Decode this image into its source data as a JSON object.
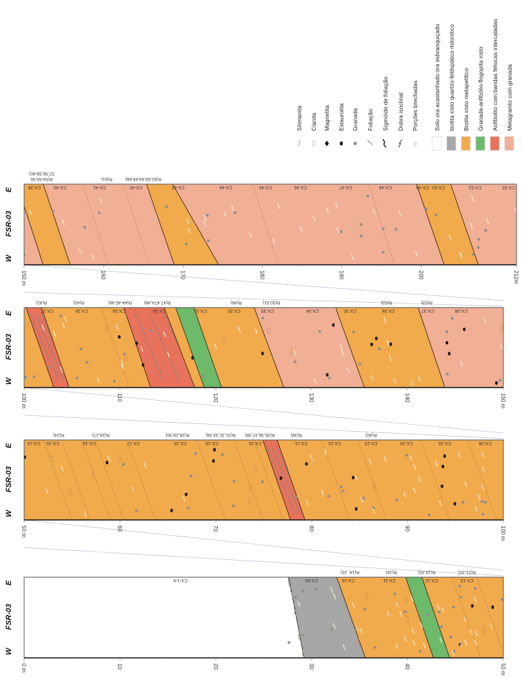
{
  "log": {
    "well": "FSR-03",
    "west": "W",
    "east": "E",
    "unit": "m"
  },
  "colors": {
    "solo": "#ffffff",
    "biotita_quartzo": "#a7a7a7",
    "biotita_metapelitico": "#f1aa4c",
    "granada_anfibolio": "#6cba6a",
    "anfibolito": "#e8725b",
    "metagranito": "#f1af96"
  },
  "legend": {
    "symbols": [
      {
        "label": "Silimanita",
        "icon": "sillimanite-icon"
      },
      {
        "label": "Cianita",
        "icon": "kyanite-icon"
      },
      {
        "label": "Magnetita",
        "icon": "magnetite-icon"
      },
      {
        "label": "Estaurolita",
        "icon": "staurolite-icon"
      },
      {
        "label": "Granada",
        "icon": "garnet-icon"
      },
      {
        "label": "Foliação",
        "icon": "foliation-icon"
      },
      {
        "label": "Sigmóide de foliação",
        "icon": "sigmoid-icon"
      },
      {
        "label": "Dobra isoclinal",
        "icon": "isoclinal-fold-icon"
      },
      {
        "label": "Porções brechadas",
        "icon": "breccia-icon"
      }
    ],
    "lithologies": [
      {
        "key": "solo",
        "label": "Solo ora acastanhado ora esbranquiçado"
      },
      {
        "key": "biotita_quartzo",
        "label": "biotita xisto quartzo-feldspático milonítico"
      },
      {
        "key": "biotita_metapelitico",
        "label": "Biotita xisto metapelítico"
      },
      {
        "key": "granada_anfibolio",
        "label": "Granada-anfibólio-flogopita xisto"
      },
      {
        "key": "anfibolito",
        "label": "Anfibolito com bandas félsicas intercaladas"
      },
      {
        "key": "metagranito",
        "label": "Metagranito com granada"
      }
    ]
  },
  "strips": [
    {
      "range": [
        150,
        212
      ],
      "ticks": [
        "150 m",
        "160",
        "170",
        "180",
        "190",
        "200",
        "212m"
      ],
      "tick_values": [
        150,
        160,
        170,
        180,
        190,
        200,
        212
      ],
      "bands": [
        {
          "lith": "metagranito",
          "e": 140,
          "w": 140
        },
        {
          "lith": "biotita_metapelitico",
          "e": 149.1,
          "w": 152.4
        },
        {
          "lith": "metagranito",
          "e": 152.4,
          "w": 155.8
        },
        {
          "lith": "biotita_metapelitico",
          "e": 165.4,
          "w": 168.9
        },
        {
          "lith": "metagranito",
          "e": 168.7,
          "w": 174.5
        },
        {
          "lith": "biotita_metapelitico",
          "e": 199.4,
          "w": 202.9
        },
        {
          "lith": "metagranito",
          "e": 203.7,
          "w": 207.2
        }
      ],
      "dotted": [
        [
          157.4,
          160.6
        ],
        [
          162.5,
          165.7
        ],
        [
          178.8,
          182
        ],
        [
          193.4,
          196.6
        ]
      ],
      "samples": [
        {
          "id": "CX-39",
          "d": 151.3
        },
        {
          "id": "CX-40",
          "d": 154.5
        },
        {
          "id": "CX-41",
          "d": 159.5
        },
        {
          "id": "CX-42",
          "d": 164.1
        },
        {
          "id": "CX-43",
          "d": 169.4
        },
        {
          "id": "CX-44",
          "d": 175.4
        },
        {
          "id": "CX-45",
          "d": 180.4
        },
        {
          "id": "CX-46",
          "d": 184.8
        },
        {
          "id": "CX-47",
          "d": 190.5
        },
        {
          "id": "CX-48",
          "d": 195.5
        },
        {
          "id": "CX-49",
          "d": 200.2
        },
        {
          "id": "CX-50",
          "d": 202.2
        },
        {
          "id": "CX-51",
          "d": 206.8
        },
        {
          "id": "CX-52",
          "d": 211
        }
      ],
      "refs": [
        {
          "id": "R(54,55,56",
          "d": 152.2,
          "row": 0
        },
        {
          "id": "57,58,59,60)",
          "d": 152.2,
          "row": 1
        },
        {
          "id": "R(61)",
          "d": 160.4,
          "row": 0
        },
        {
          "id": "R(62,63,64,65,66)",
          "d": 165,
          "row": 0
        }
      ]
    },
    {
      "range": [
        100,
        150
      ],
      "ticks": [
        "100 m",
        "110",
        "120",
        "130",
        "140",
        "150 m"
      ],
      "tick_values": [
        100,
        110,
        120,
        130,
        140,
        150
      ],
      "bands": [
        {
          "lith": "biotita_metapelitico",
          "e": 90,
          "w": 90
        },
        {
          "lith": "anfibolito",
          "e": 100.2,
          "w": 103.1
        },
        {
          "lith": "biotita_metapelitico",
          "e": 101.8,
          "w": 104.7
        },
        {
          "lith": "anfibolito",
          "e": 110.4,
          "w": 113.2
        },
        {
          "lith": "biotita_metapelitico",
          "e": 114.6,
          "w": 117.8
        },
        {
          "lith": "granada_anfibolio",
          "e": 115.8,
          "w": 118.8
        },
        {
          "lith": "biotita_metapelitico",
          "e": 117.7,
          "w": 120.6
        },
        {
          "lith": "metagranito",
          "e": 124,
          "w": 127.1
        },
        {
          "lith": "biotita_metapelitico",
          "e": 132.5,
          "w": 135.5
        },
        {
          "lith": "metagranito",
          "e": 141.1,
          "w": 143.9
        }
      ],
      "dotted": [
        [
          108,
          111
        ]
      ],
      "samples": [
        {
          "id": "CX-27",
          "d": 102.4
        },
        {
          "id": "CX-28",
          "d": 106
        },
        {
          "id": "CX-29",
          "d": 109.9
        },
        {
          "id": "CX-30",
          "d": 114.1
        },
        {
          "id": "CX-31",
          "d": 118.4
        },
        {
          "id": "CX-32",
          "d": 121.9
        },
        {
          "id": "CX-33",
          "d": 125.4
        },
        {
          "id": "CX-34",
          "d": 130.1
        },
        {
          "id": "CX-35",
          "d": 134
        },
        {
          "id": "CX-36",
          "d": 138
        },
        {
          "id": "CX-37",
          "d": 142.1
        },
        {
          "id": "CX-38",
          "d": 145.6
        }
      ],
      "refs": [
        {
          "id": "R(42)",
          "d": 101.8,
          "row": 0
        },
        {
          "id": "R(43)",
          "d": 105.7,
          "row": 0
        },
        {
          "id": "R(44,45,46)",
          "d": 110,
          "row": 0
        },
        {
          "id": "R(47,47A,48)",
          "d": 113.9,
          "row": 0
        },
        {
          "id": "R(49)",
          "d": 122.1,
          "row": 0
        },
        {
          "id": "R(50,51)",
          "d": 125.8,
          "row": 0
        },
        {
          "id": "R(52)",
          "d": 137.8,
          "row": 0
        },
        {
          "id": "R(53)",
          "d": 142,
          "row": 0
        }
      ]
    },
    {
      "range": [
        50,
        100
      ],
      "ticks": [
        "50 m",
        "60",
        "70",
        "80",
        "90",
        "100 m"
      ],
      "tick_values": [
        50,
        60,
        70,
        80,
        90,
        100
      ],
      "bands": [
        {
          "lith": "biotita_metapelitico",
          "e": 40,
          "w": 40
        },
        {
          "lith": "anfibolito",
          "e": 74.9,
          "w": 77.8
        },
        {
          "lith": "biotita_metapelitico",
          "e": 76.4,
          "w": 79.3
        }
      ],
      "dotted": [
        [
          52,
          55
        ],
        [
          53.9,
          56.9
        ],
        [
          56,
          59
        ],
        [
          57.4,
          60.4
        ],
        [
          60.7,
          63.7
        ],
        [
          68,
          71
        ],
        [
          71.9,
          74.9
        ],
        [
          74,
          77
        ],
        [
          81,
          84
        ],
        [
          84.8,
          87.8
        ],
        [
          91.4,
          94.4
        ],
        [
          96.3,
          99.3
        ]
      ],
      "samples": [
        {
          "id": "CX-14",
          "d": 51
        },
        {
          "id": "CX-15",
          "d": 53
        },
        {
          "id": "CX-16",
          "d": 56.8
        },
        {
          "id": "CX-17",
          "d": 61.4
        },
        {
          "id": "CX-18",
          "d": 66.3
        },
        {
          "id": "CX-19",
          "d": 69.6
        },
        {
          "id": "CX-20",
          "d": 74.1
        },
        {
          "id": "CX-21",
          "d": 78.9
        },
        {
          "id": "CX-22",
          "d": 82.4
        },
        {
          "id": "CX-23",
          "d": 86.2
        },
        {
          "id": "CX-24",
          "d": 89.9
        },
        {
          "id": "CX-25",
          "d": 93.9
        },
        {
          "id": "CX-26",
          "d": 98.1
        }
      ],
      "refs": [
        {
          "id": "R(24)",
          "d": 53.6,
          "row": 0
        },
        {
          "id": "R(26,27)",
          "d": 58,
          "row": 0
        },
        {
          "id": "R(28,29,30)",
          "d": 66,
          "row": 0
        },
        {
          "id": "R(31,32,33,34)",
          "d": 70.5,
          "row": 0
        },
        {
          "id": "R(35,36,37,38)",
          "d": 74.6,
          "row": 0
        },
        {
          "id": "R(39)",
          "d": 78.4,
          "row": 0
        },
        {
          "id": "R(40)",
          "d": 86.2,
          "row": 0
        }
      ]
    },
    {
      "range": [
        0,
        50
      ],
      "ticks": [
        "0 m",
        "10",
        "20",
        "30",
        "40",
        "50 m"
      ],
      "tick_values": [
        0,
        10,
        20,
        30,
        40,
        50
      ],
      "bands": [
        {
          "lith": "solo",
          "e": -10,
          "w": -10
        },
        {
          "lith": "biotita_quartzo",
          "e": 27.6,
          "w": 29.2
        },
        {
          "lith": "biotita_metapelitico",
          "e": 32.6,
          "w": 35.6
        },
        {
          "lith": "granada_anfibolio",
          "e": 39.8,
          "w": 42.7
        },
        {
          "lith": "biotita_metapelitico",
          "e": 41.5,
          "w": 44.4
        }
      ],
      "dotted": [
        [
          44.6,
          47.6
        ],
        [
          47.2,
          50.2
        ]
      ],
      "samples": [
        {
          "id": "CX-1-6",
          "d": 16.3
        },
        {
          "id": "CX-09",
          "d": 30
        },
        {
          "id": "CX-10",
          "d": 33.8
        },
        {
          "id": "CX-11",
          "d": 38.1
        },
        {
          "id": "CX-12",
          "d": 42.5
        },
        {
          "id": "CX-13",
          "d": 46.2
        }
      ],
      "refs": [
        {
          "id": "R(14, 15)",
          "d": 34,
          "row": 0
        },
        {
          "id": "R(18)",
          "d": 38.3,
          "row": 0
        },
        {
          "id": "R(19,20)",
          "d": 42,
          "row": 0
        },
        {
          "id": "R(21,22)",
          "d": 46.2,
          "row": 0
        }
      ]
    }
  ]
}
